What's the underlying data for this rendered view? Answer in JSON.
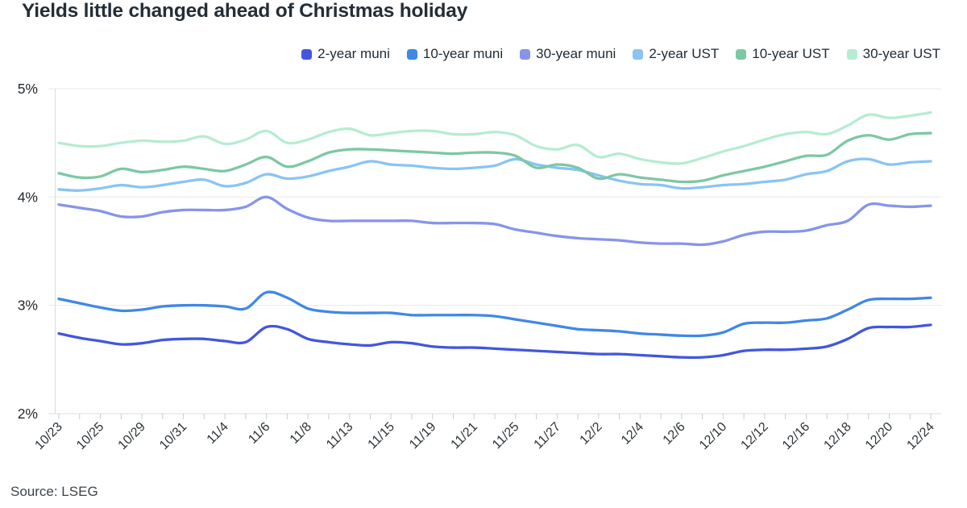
{
  "header": {
    "title": "Yields little changed ahead of Christmas holiday"
  },
  "footer": {
    "source": "Source: LSEG"
  },
  "legend": [
    {
      "label": "2-year muni",
      "color": "#4356DF"
    },
    {
      "label": "10-year muni",
      "color": "#3F88E6"
    },
    {
      "label": "30-year muni",
      "color": "#8794E8"
    },
    {
      "label": "2-year UST",
      "color": "#89C4F4"
    },
    {
      "label": "10-year UST",
      "color": "#7CC8A3"
    },
    {
      "label": "30-year UST",
      "color": "#B6ECD2"
    }
  ],
  "chart_data": {
    "type": "line",
    "title": "Yields little changed ahead of Christmas holiday",
    "xlabel": "",
    "ylabel": "",
    "ylim": [
      2,
      5
    ],
    "grid": "horizontal",
    "legend_position": "top-right",
    "x_label_every": 2,
    "yticks": [
      {
        "value": 2,
        "label": "2%"
      },
      {
        "value": 3,
        "label": "3%"
      },
      {
        "value": 4,
        "label": "4%"
      },
      {
        "value": 5,
        "label": "5%"
      }
    ],
    "x": [
      "10/23",
      "10/24",
      "10/25",
      "10/28",
      "10/29",
      "10/30",
      "10/31",
      "11/1",
      "11/4",
      "11/5",
      "11/6",
      "11/7",
      "11/8",
      "11/12",
      "11/13",
      "11/14",
      "11/15",
      "11/18",
      "11/19",
      "11/20",
      "11/21",
      "11/22",
      "11/25",
      "11/26",
      "11/27",
      "11/29",
      "12/2",
      "12/3",
      "12/4",
      "12/5",
      "12/6",
      "12/9",
      "12/10",
      "12/11",
      "12/12",
      "12/13",
      "12/16",
      "12/17",
      "12/18",
      "12/19",
      "12/20",
      "12/23",
      "12/24"
    ],
    "series": [
      {
        "name": "2-year muni",
        "color": "#4356DF",
        "values": [
          2.74,
          2.7,
          2.67,
          2.64,
          2.65,
          2.68,
          2.69,
          2.69,
          2.67,
          2.66,
          2.8,
          2.78,
          2.69,
          2.66,
          2.64,
          2.63,
          2.66,
          2.65,
          2.62,
          2.61,
          2.61,
          2.6,
          2.59,
          2.58,
          2.57,
          2.56,
          2.55,
          2.55,
          2.54,
          2.53,
          2.52,
          2.52,
          2.54,
          2.58,
          2.59,
          2.59,
          2.6,
          2.62,
          2.69,
          2.79,
          2.8,
          2.8,
          2.82
        ]
      },
      {
        "name": "10-year muni",
        "color": "#3F88E6",
        "values": [
          3.06,
          3.02,
          2.98,
          2.95,
          2.96,
          2.99,
          3.0,
          3.0,
          2.99,
          2.97,
          3.12,
          3.07,
          2.97,
          2.94,
          2.93,
          2.93,
          2.93,
          2.91,
          2.91,
          2.91,
          2.91,
          2.9,
          2.87,
          2.84,
          2.81,
          2.78,
          2.77,
          2.76,
          2.74,
          2.73,
          2.72,
          2.72,
          2.75,
          2.83,
          2.84,
          2.84,
          2.86,
          2.88,
          2.96,
          3.05,
          3.06,
          3.06,
          3.07
        ]
      },
      {
        "name": "30-year muni",
        "color": "#8794E8",
        "values": [
          3.93,
          3.9,
          3.87,
          3.82,
          3.82,
          3.86,
          3.88,
          3.88,
          3.88,
          3.91,
          4.0,
          3.89,
          3.81,
          3.78,
          3.78,
          3.78,
          3.78,
          3.78,
          3.76,
          3.76,
          3.76,
          3.75,
          3.7,
          3.67,
          3.64,
          3.62,
          3.61,
          3.6,
          3.58,
          3.57,
          3.57,
          3.56,
          3.59,
          3.65,
          3.68,
          3.68,
          3.69,
          3.74,
          3.78,
          3.93,
          3.92,
          3.91,
          3.92
        ]
      },
      {
        "name": "2-year UST",
        "color": "#89C4F4",
        "values": [
          4.07,
          4.06,
          4.08,
          4.11,
          4.09,
          4.11,
          4.14,
          4.16,
          4.1,
          4.13,
          4.21,
          4.17,
          4.19,
          4.24,
          4.28,
          4.33,
          4.3,
          4.29,
          4.27,
          4.26,
          4.27,
          4.29,
          4.35,
          4.3,
          4.27,
          4.25,
          4.2,
          4.15,
          4.12,
          4.11,
          4.08,
          4.09,
          4.11,
          4.12,
          4.14,
          4.16,
          4.21,
          4.24,
          4.33,
          4.35,
          4.3,
          4.32,
          4.33
        ]
      },
      {
        "name": "10-year UST",
        "color": "#7CC8A3",
        "values": [
          4.22,
          4.18,
          4.19,
          4.26,
          4.23,
          4.25,
          4.28,
          4.26,
          4.24,
          4.3,
          4.37,
          4.28,
          4.33,
          4.41,
          4.44,
          4.44,
          4.43,
          4.42,
          4.41,
          4.4,
          4.41,
          4.41,
          4.38,
          4.27,
          4.3,
          4.27,
          4.17,
          4.21,
          4.18,
          4.16,
          4.14,
          4.15,
          4.2,
          4.24,
          4.28,
          4.33,
          4.38,
          4.39,
          4.52,
          4.57,
          4.53,
          4.58,
          4.59
        ]
      },
      {
        "name": "30-year UST",
        "color": "#B6ECD2",
        "values": [
          4.5,
          4.47,
          4.47,
          4.5,
          4.52,
          4.51,
          4.52,
          4.56,
          4.49,
          4.53,
          4.61,
          4.5,
          4.53,
          4.6,
          4.63,
          4.57,
          4.59,
          4.61,
          4.61,
          4.58,
          4.58,
          4.6,
          4.57,
          4.47,
          4.44,
          4.48,
          4.37,
          4.4,
          4.35,
          4.32,
          4.31,
          4.36,
          4.42,
          4.47,
          4.53,
          4.58,
          4.6,
          4.58,
          4.66,
          4.76,
          4.73,
          4.75,
          4.78
        ]
      }
    ]
  }
}
